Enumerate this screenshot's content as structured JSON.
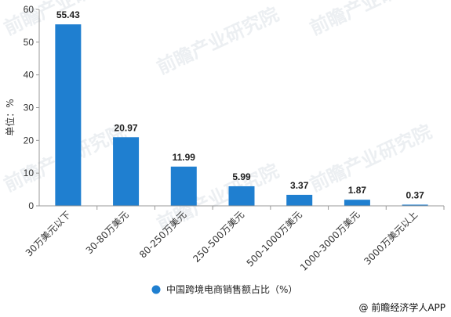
{
  "chart_data": {
    "type": "bar",
    "categories": [
      "30万美元以下",
      "30-80万美元",
      "80-250万美元",
      "250-500万美元",
      "500-1000万美元",
      "1000-3000万美元",
      "3000万美元以上"
    ],
    "series": [
      {
        "name": "中国跨境电商销售额占比（%）",
        "values": [
          55.43,
          20.97,
          11.99,
          5.99,
          3.37,
          1.87,
          0.37
        ]
      }
    ],
    "data_labels": [
      "55.43",
      "20.97",
      "11.99",
      "5.99",
      "3.37",
      "1.87",
      "0.37"
    ],
    "ylabel": "单位：%",
    "ylim": [
      0,
      60
    ],
    "yticks": [
      0,
      10,
      20,
      30,
      40,
      50,
      60
    ],
    "grid": false,
    "legend_position": "bottom-center",
    "bar_color": "#1f7fd0"
  },
  "watermark": {
    "text": "前瞻产业研究院"
  },
  "source": {
    "text": "@ 前瞻经济学人APP"
  }
}
